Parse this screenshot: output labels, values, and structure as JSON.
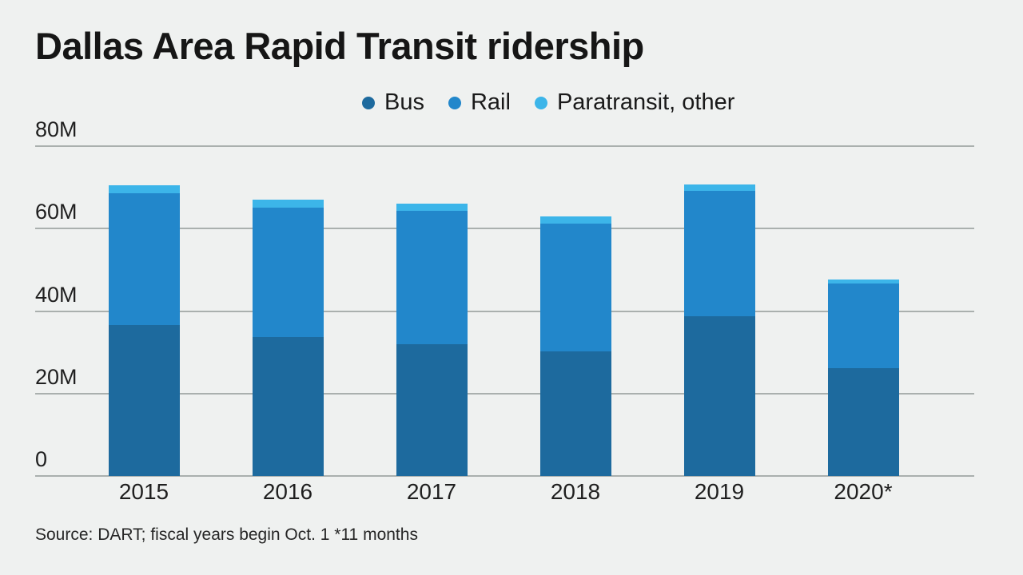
{
  "chart_data": {
    "type": "bar",
    "stacked": true,
    "title": "Dallas Area Rapid Transit ridership",
    "categories": [
      "2015",
      "2016",
      "2017",
      "2018",
      "2019",
      "2020*"
    ],
    "series": [
      {
        "name": "Bus",
        "color": "#1d6a9e",
        "values": [
          36.6,
          33.7,
          31.9,
          30.2,
          38.7,
          26.1
        ]
      },
      {
        "name": "Rail",
        "color": "#2287cb",
        "values": [
          31.9,
          31.4,
          32.5,
          31.0,
          30.4,
          20.5
        ]
      },
      {
        "name": "Paratransit, other",
        "color": "#3cb5e9",
        "values": [
          2.1,
          2.0,
          1.6,
          1.7,
          1.7,
          1.0
        ]
      }
    ],
    "totals": [
      70.6,
      67.1,
      66.0,
      62.9,
      70.8,
      47.6
    ],
    "xlabel": "",
    "ylabel": "",
    "ylim": [
      0,
      80
    ],
    "yticks": [
      {
        "value": 0,
        "label": "0"
      },
      {
        "value": 20,
        "label": "20M"
      },
      {
        "value": 40,
        "label": "40M"
      },
      {
        "value": 60,
        "label": "60M"
      },
      {
        "value": 80,
        "label": "80M"
      }
    ],
    "grid": true,
    "legend_position": "top-center",
    "source_note": "Source: DART; fiscal years begin Oct. 1 *11 months",
    "colors": {
      "background": "#eff1f0",
      "gridline": "#aab0ae",
      "text": "#1a1a1a"
    }
  }
}
